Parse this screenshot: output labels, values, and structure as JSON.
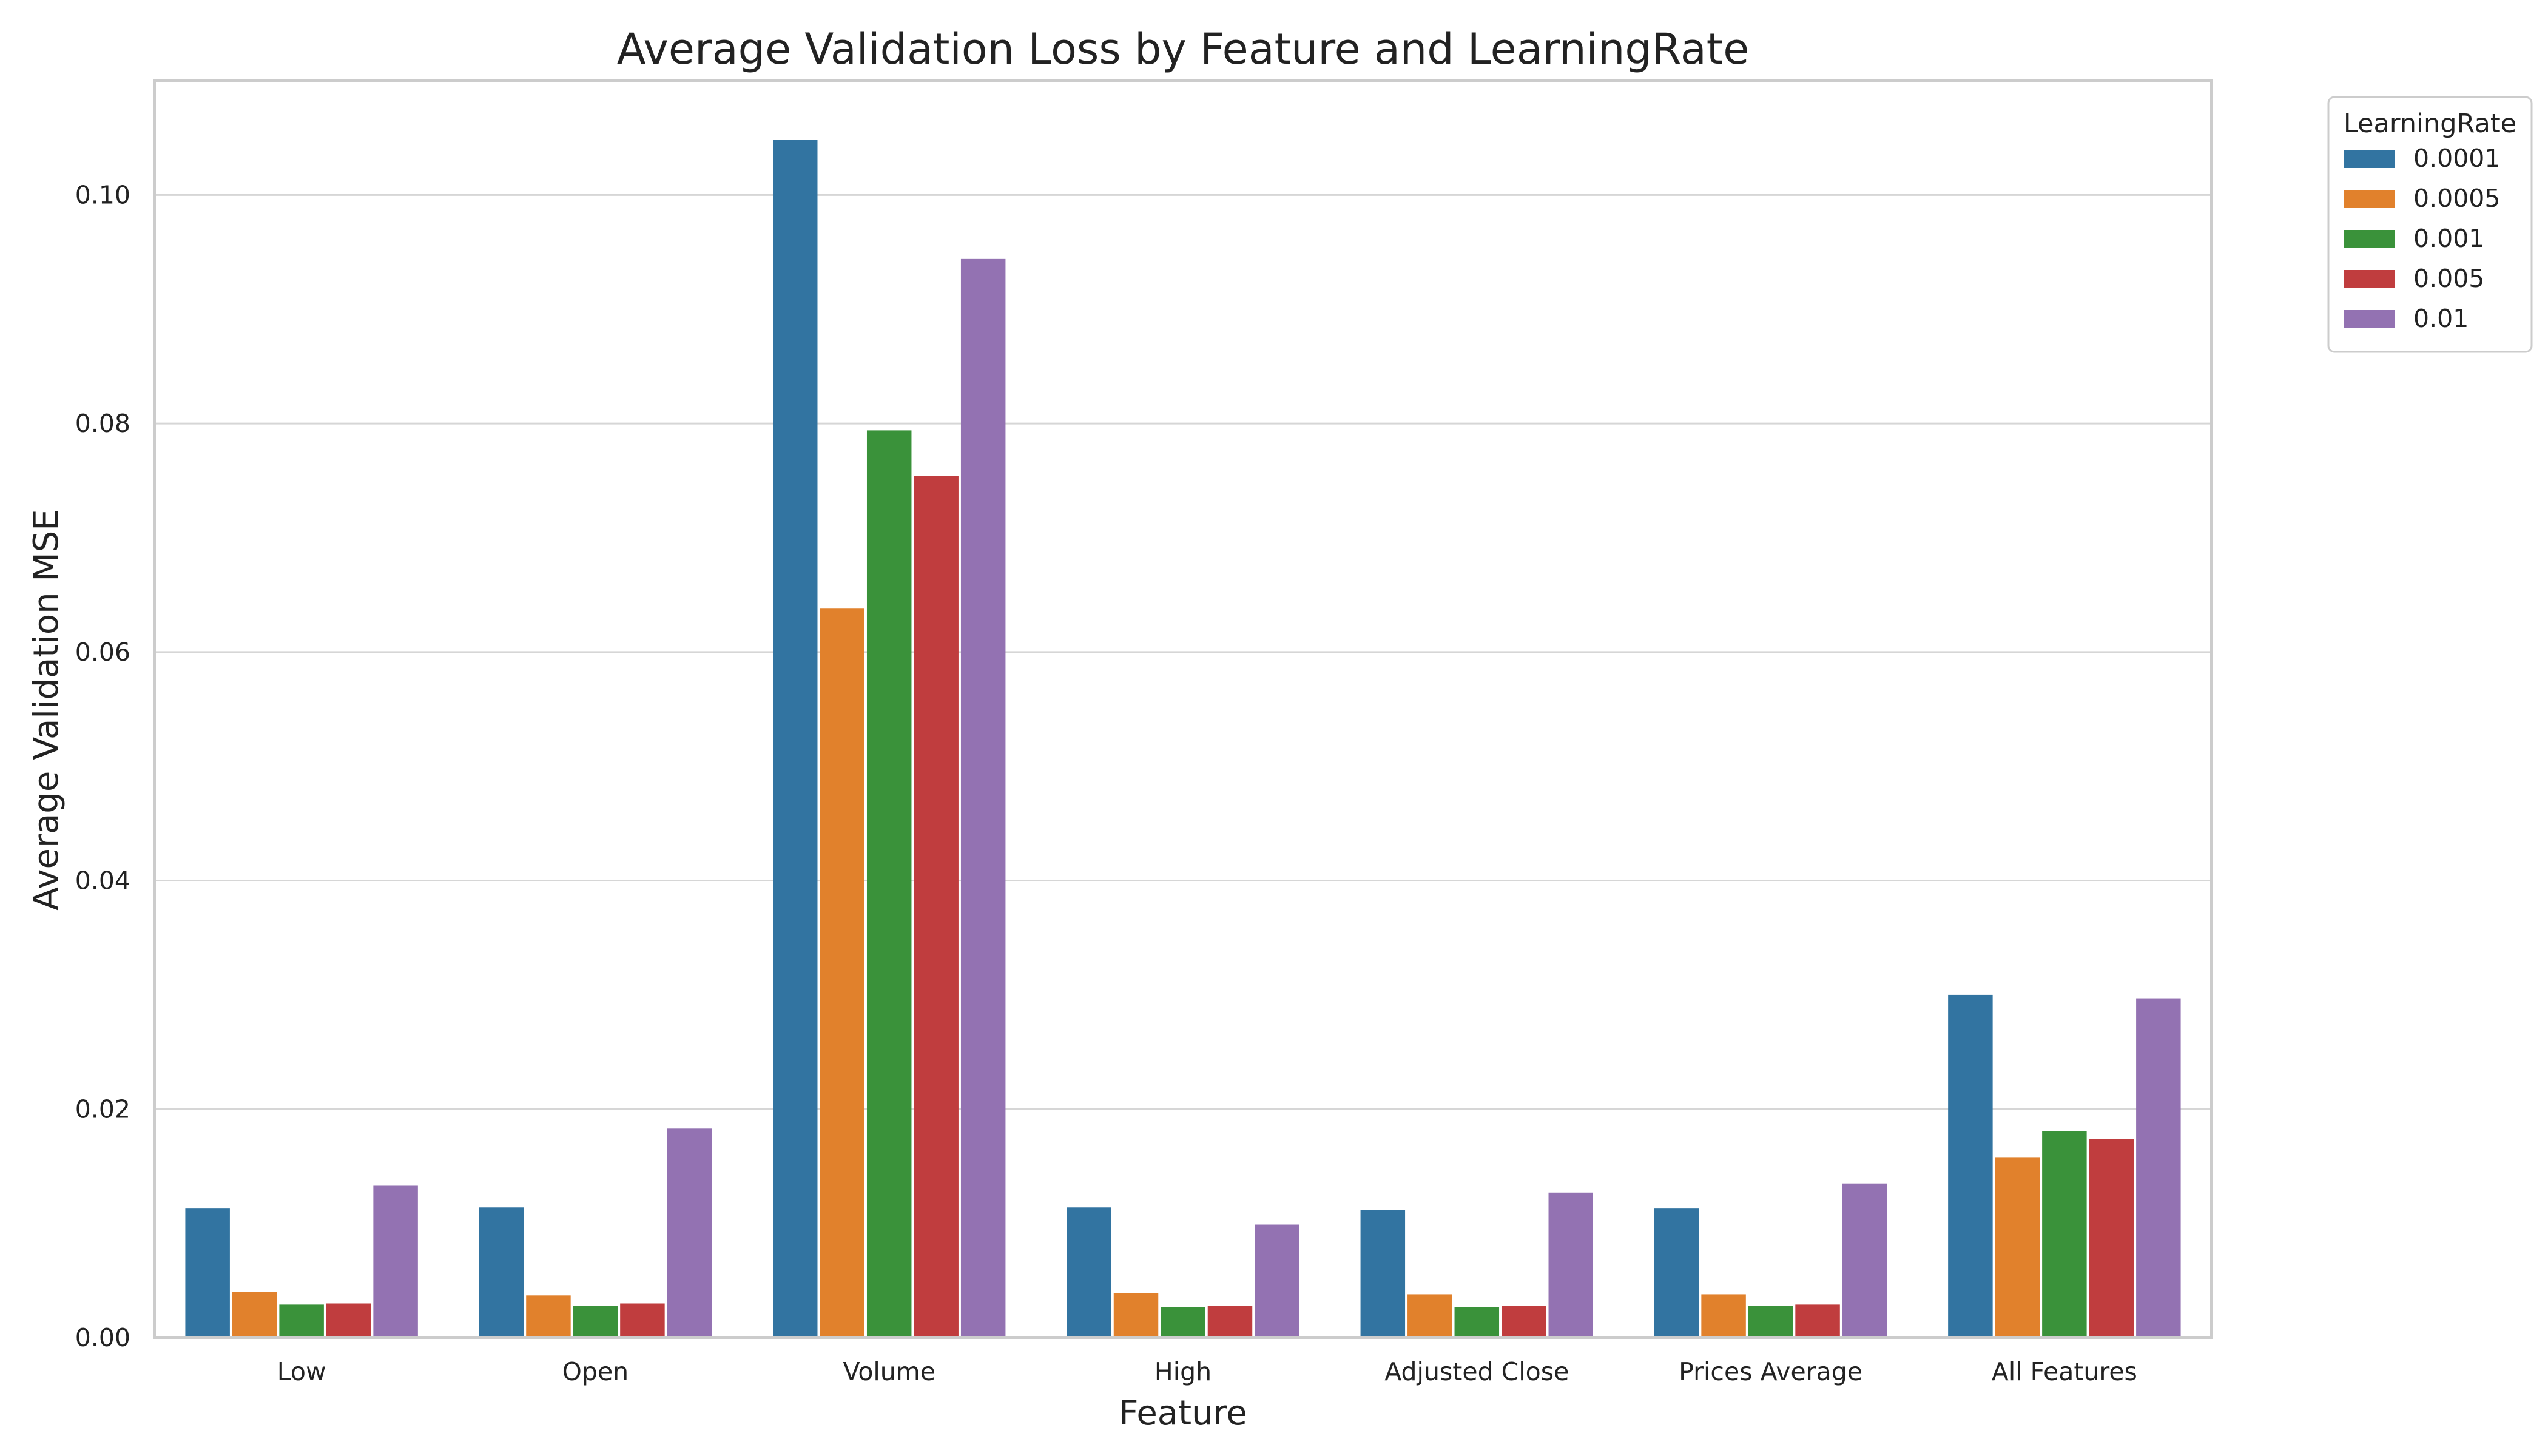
{
  "chart_data": {
    "type": "bar",
    "title": "Average Validation Loss by Feature and LearningRate",
    "xlabel": "Feature",
    "ylabel": "Average Validation MSE",
    "ylim": [
      0,
      0.11
    ],
    "yticks": [
      "0.00",
      "0.02",
      "0.04",
      "0.06",
      "0.08",
      "0.10"
    ],
    "categories": [
      "Low",
      "Open",
      "Volume",
      "High",
      "Adjusted Close",
      "Prices Average",
      "All Features"
    ],
    "grid": true,
    "legend": {
      "title": "LearningRate",
      "placement": "outside-top-right"
    },
    "series": [
      {
        "name": "0.0001",
        "color": "#3274a1",
        "values": [
          0.0113,
          0.0114,
          0.1048,
          0.0114,
          0.0112,
          0.0113,
          0.03
        ]
      },
      {
        "name": "0.0005",
        "color": "#e1812c",
        "values": [
          0.004,
          0.0037,
          0.0638,
          0.0039,
          0.0038,
          0.0038,
          0.0158
        ]
      },
      {
        "name": "0.001",
        "color": "#3a923a",
        "values": [
          0.0029,
          0.0028,
          0.0794,
          0.0027,
          0.0027,
          0.0028,
          0.0181
        ]
      },
      {
        "name": "0.005",
        "color": "#c03d3e",
        "values": [
          0.003,
          0.003,
          0.0754,
          0.0028,
          0.0028,
          0.0029,
          0.0174
        ]
      },
      {
        "name": "0.01",
        "color": "#9372b2",
        "values": [
          0.0133,
          0.0183,
          0.0944,
          0.0099,
          0.0127,
          0.0135,
          0.0297
        ]
      }
    ]
  }
}
